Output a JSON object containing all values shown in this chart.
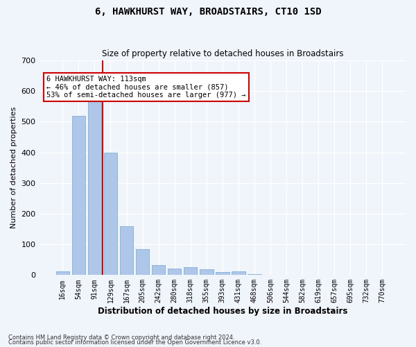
{
  "title": "6, HAWKHURST WAY, BROADSTAIRS, CT10 1SD",
  "subtitle": "Size of property relative to detached houses in Broadstairs",
  "xlabel": "Distribution of detached houses by size in Broadstairs",
  "ylabel": "Number of detached properties",
  "footnote1": "Contains HM Land Registry data © Crown copyright and database right 2024.",
  "footnote2": "Contains public sector information licensed under the Open Government Licence v3.0.",
  "bin_labels": [
    "16sqm",
    "54sqm",
    "91sqm",
    "129sqm",
    "167sqm",
    "205sqm",
    "242sqm",
    "280sqm",
    "318sqm",
    "355sqm",
    "393sqm",
    "431sqm",
    "468sqm",
    "506sqm",
    "544sqm",
    "582sqm",
    "619sqm",
    "657sqm",
    "695sqm",
    "732sqm",
    "770sqm"
  ],
  "bar_values": [
    13,
    520,
    580,
    400,
    160,
    85,
    32,
    22,
    25,
    18,
    10,
    13,
    3,
    0,
    0,
    0,
    0,
    0,
    0,
    0,
    0
  ],
  "bar_color": "#aec6e8",
  "bar_edge_color": "#6fa8d0",
  "background_color": "#f0f4fb",
  "grid_color": "#ffffff",
  "vline_pos": 2.5,
  "vline_color": "#cc0000",
  "annotation_box_text": "6 HAWKHURST WAY: 113sqm\n← 46% of detached houses are smaller (857)\n53% of semi-detached houses are larger (977) →",
  "annotation_box_color": "#cc0000",
  "annotation_box_bg": "#ffffff",
  "ylim": [
    0,
    700
  ],
  "yticks": [
    0,
    100,
    200,
    300,
    400,
    500,
    600,
    700
  ]
}
